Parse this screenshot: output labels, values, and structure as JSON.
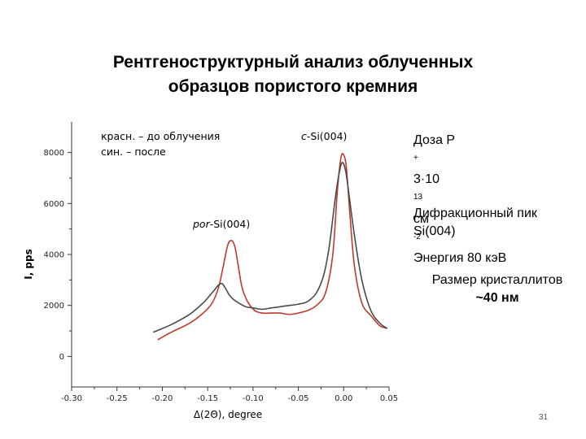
{
  "title_lines": [
    "Рентгеноструктурный анализ облученных",
    "образцов пористого кремния"
  ],
  "legend": {
    "red": "красн. – до облучения",
    "black": "син. – после"
  },
  "annotations": {
    "csi_prefix": "c",
    "csi_suffix": "-Si(004)",
    "porsi_prefix": "por",
    "porsi_suffix": "-Si(004)"
  },
  "dose": {
    "line1_prefix": "Доза P",
    "line1_sup1": "+",
    "line1_mid": " 3·10",
    "line1_sup2": "13",
    "line1_end": " см",
    "line1_sup3": "-2",
    "line2": "Энергия 80 кэВ"
  },
  "diffraction": {
    "line1": "Дифракционный пик",
    "line2": "Si(004)"
  },
  "crystallite": {
    "line1": "Размер кристаллитов",
    "line2": "~40 нм"
  },
  "page_number": "31",
  "chart_data": {
    "type": "line",
    "xlabel": "Δ(2Θ), degree",
    "ylabel": "I, pps",
    "xlim": [
      -0.3,
      0.05
    ],
    "ylim": [
      -1200,
      9200
    ],
    "x_ticks": [
      "-0.30",
      "-0.25",
      "-0.20",
      "-0.15",
      "-0.10",
      "-0.05",
      "0.00",
      "0.05"
    ],
    "y_ticks": [
      "0",
      "2000",
      "4000",
      "6000",
      "8000"
    ],
    "series": [
      {
        "color": "#c0392b",
        "x": [
          -0.205,
          -0.19,
          -0.17,
          -0.155,
          -0.145,
          -0.138,
          -0.133,
          -0.128,
          -0.124,
          -0.12,
          -0.116,
          -0.112,
          -0.106,
          -0.098,
          -0.09,
          -0.08,
          -0.07,
          -0.06,
          -0.05,
          -0.04,
          -0.03,
          -0.02,
          -0.012,
          -0.007,
          -0.003,
          0.0,
          0.003,
          0.007,
          0.012,
          0.02,
          0.03,
          0.04,
          0.048
        ],
        "y": [
          650,
          950,
          1300,
          1700,
          2100,
          2700,
          3500,
          4350,
          4550,
          4300,
          3500,
          2700,
          2150,
          1800,
          1700,
          1700,
          1700,
          1650,
          1700,
          1800,
          2000,
          2500,
          4000,
          6500,
          7800,
          7900,
          7400,
          5500,
          3500,
          2100,
          1600,
          1200,
          1100
        ]
      },
      {
        "color": "#4a4a4a",
        "x": [
          -0.21,
          -0.19,
          -0.17,
          -0.155,
          -0.145,
          -0.138,
          -0.134,
          -0.13,
          -0.126,
          -0.122,
          -0.116,
          -0.108,
          -0.1,
          -0.09,
          -0.08,
          -0.07,
          -0.06,
          -0.05,
          -0.04,
          -0.03,
          -0.022,
          -0.016,
          -0.01,
          -0.006,
          -0.002,
          0.002,
          0.006,
          0.012,
          0.02,
          0.03,
          0.04,
          0.048
        ],
        "y": [
          950,
          1250,
          1650,
          2100,
          2500,
          2800,
          2850,
          2650,
          2400,
          2250,
          2100,
          1950,
          1900,
          1850,
          1900,
          1950,
          2000,
          2050,
          2150,
          2500,
          3200,
          4300,
          6000,
          7000,
          7600,
          7300,
          6300,
          4700,
          3000,
          1800,
          1300,
          1100
        ]
      }
    ]
  }
}
